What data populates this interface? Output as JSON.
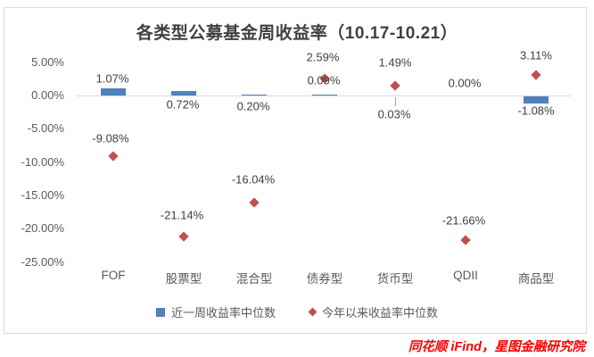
{
  "title": "各类型公募基金周收益率（10.17-10.21）",
  "footer": "同花顺 iFind，星图金融研究院",
  "colors": {
    "bar_blue": "#4F81BD",
    "diamond_red": "#C0504D",
    "axis_line": "#D9D9D9",
    "axis_text": "#595959",
    "label_text": "#404040",
    "footer_red": "#FE0000"
  },
  "chart_data": {
    "type": "bar",
    "subtype": "bar-with-diamond-markers",
    "title": "各类型公募基金周收益率（10.17-10.21）",
    "categories": [
      "FOF",
      "股票型",
      "混合型",
      "债券型",
      "货币型",
      "QDII",
      "商品型"
    ],
    "series": [
      {
        "name": "近一周收益率中位数",
        "type": "bar",
        "color": "#4F81BD",
        "values": [
          1.07,
          0.72,
          0.2,
          0.09,
          0.03,
          0.0,
          -1.08
        ],
        "labels": [
          "1.07%",
          "0.72%",
          "0.20%",
          "0.09%",
          "0.03%",
          "0.00%",
          "-1.08%"
        ]
      },
      {
        "name": "今年以来收益率中位数",
        "type": "scatter",
        "marker": "diamond",
        "color": "#C0504D",
        "values": [
          -9.08,
          -21.14,
          -16.04,
          2.59,
          1.49,
          -21.66,
          3.11
        ],
        "labels": [
          "-9.08%",
          "-21.14%",
          "-16.04%",
          "2.59%",
          "1.49%",
          "-21.66%",
          "3.11%"
        ]
      }
    ],
    "y_axis": {
      "ticks": [
        "5.00%",
        "0.00%",
        "-5.00%",
        "-10.00%",
        "-15.00%",
        "-20.00%",
        "-25.00%"
      ],
      "tick_values": [
        5,
        0,
        -5,
        -10,
        -15,
        -20,
        -25
      ],
      "range": [
        -25,
        5
      ]
    },
    "grid": "zero-line-only",
    "legend_position": "bottom"
  }
}
